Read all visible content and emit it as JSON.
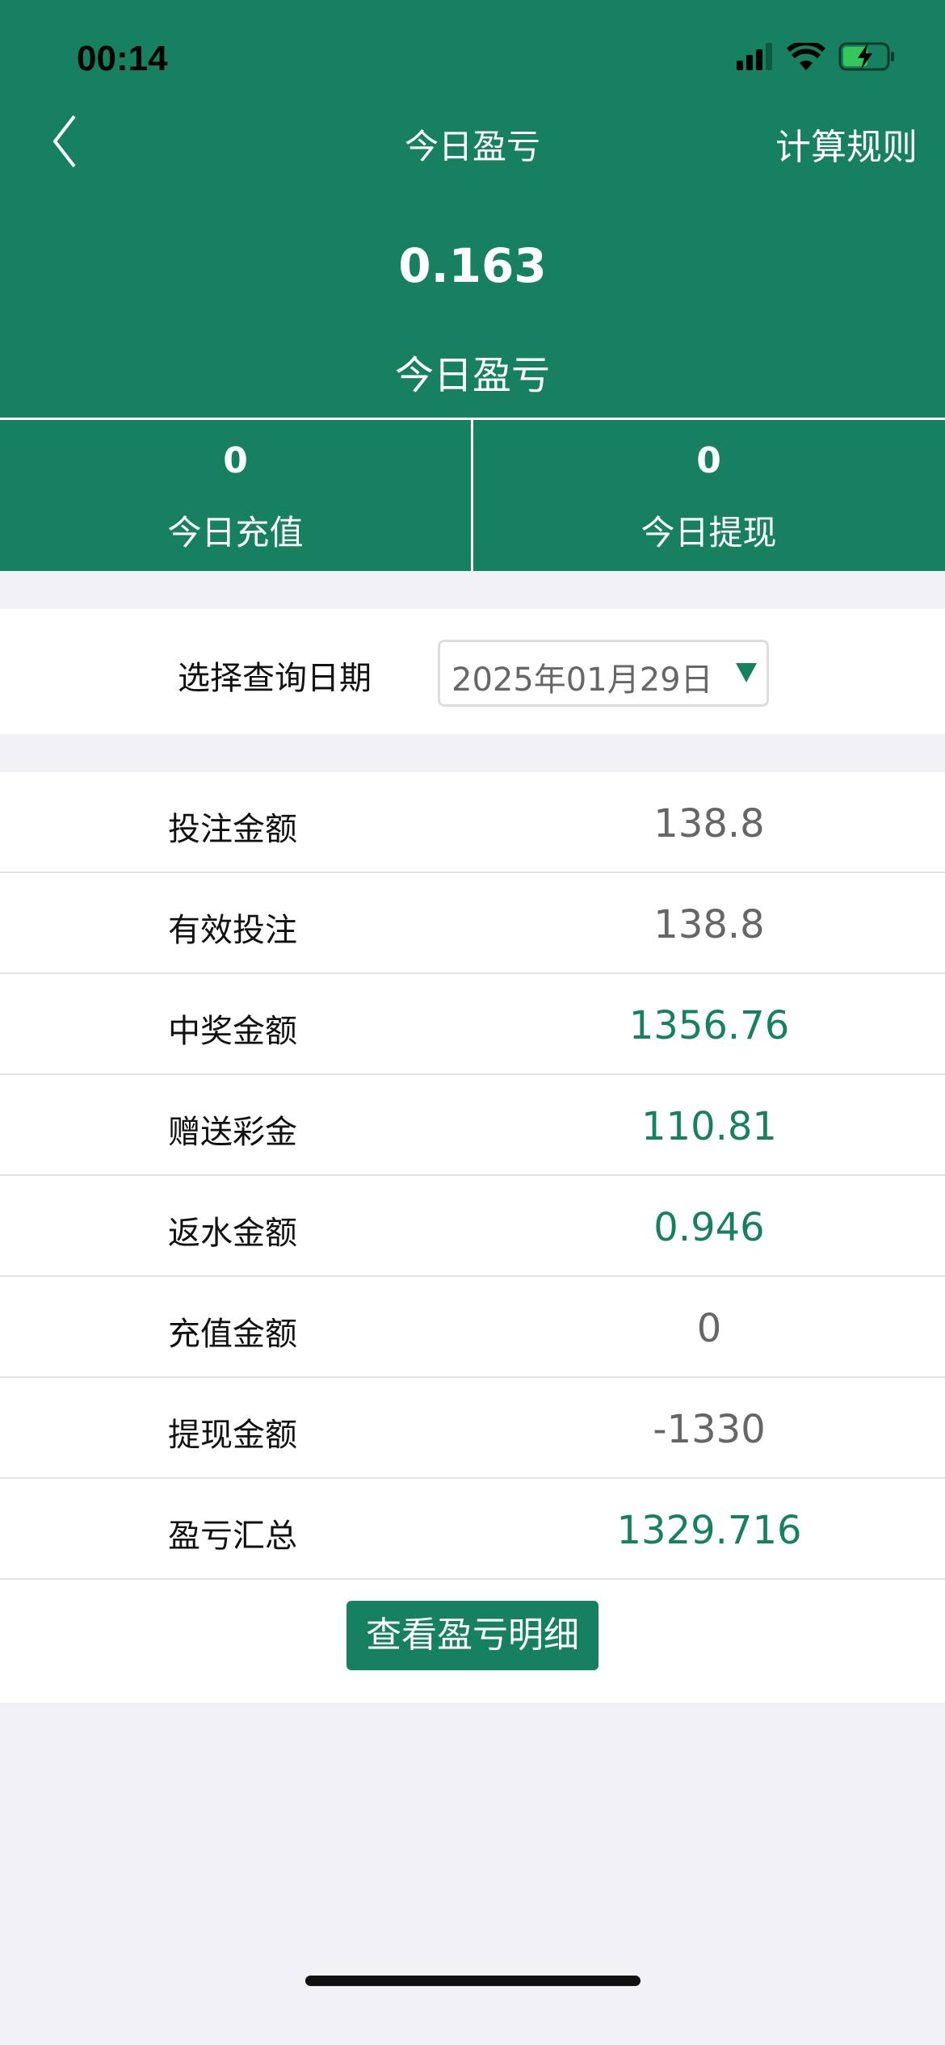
{
  "status_bar": {
    "time": "00:14",
    "icons": [
      "signal-icon",
      "wifi-icon",
      "battery-charging-icon"
    ]
  },
  "nav": {
    "title": "今日盈亏",
    "right_label": "计算规则",
    "back_icon": "chevron-left-icon"
  },
  "summary": {
    "value": "0.163",
    "label": "今日盈亏"
  },
  "stats": [
    {
      "value": "0",
      "label": "今日充值"
    },
    {
      "value": "0",
      "label": "今日提现"
    }
  ],
  "date_filter": {
    "label": "选择查询日期",
    "value": "2025年01月29日"
  },
  "rows": [
    {
      "label": "投注金额",
      "value": "138.8",
      "color": "gray"
    },
    {
      "label": "有效投注",
      "value": "138.8",
      "color": "gray"
    },
    {
      "label": "中奖金额",
      "value": "1356.76",
      "color": "green"
    },
    {
      "label": "赠送彩金",
      "value": "110.81",
      "color": "green"
    },
    {
      "label": "返水金额",
      "value": "0.946",
      "color": "green"
    },
    {
      "label": "充值金额",
      "value": "0",
      "color": "gray"
    },
    {
      "label": "提现金额",
      "value": "-1330",
      "color": "gray"
    },
    {
      "label": "盈亏汇总",
      "value": "1329.716",
      "color": "green"
    }
  ],
  "detail_button": "查看盈亏明细",
  "colors": {
    "brand": "#168060",
    "value_gray": "#666666"
  }
}
